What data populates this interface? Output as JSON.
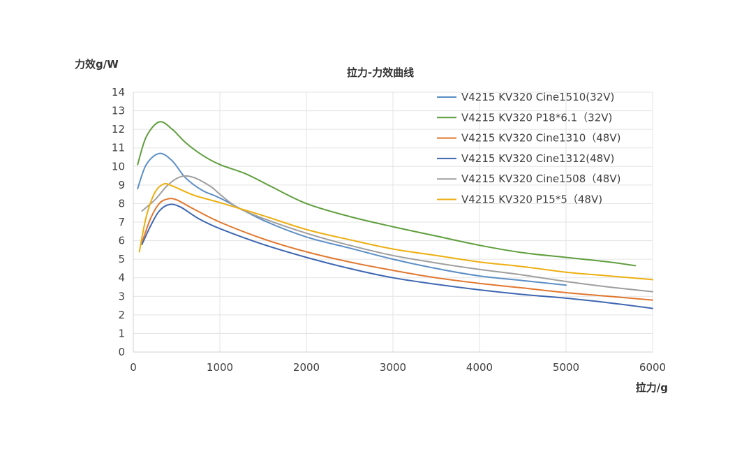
{
  "chart_data": {
    "type": "line",
    "title": "拉力-力效曲线",
    "xlabel": "拉力/g",
    "ylabel": "力效g/W",
    "xlim": [
      0,
      6000
    ],
    "ylim": [
      0,
      14
    ],
    "x_ticks": [
      0,
      1000,
      2000,
      3000,
      4000,
      5000,
      6000
    ],
    "y_ticks": [
      0,
      1,
      2,
      3,
      4,
      5,
      6,
      7,
      8,
      9,
      10,
      11,
      12,
      13,
      14
    ],
    "grid": true,
    "legend_position": "top-right",
    "series": [
      {
        "name": "V4215 KV320 Cine1510(32V)",
        "color": "#5b8ec6",
        "points": [
          [
            50,
            8.8
          ],
          [
            150,
            10.1
          ],
          [
            300,
            10.7
          ],
          [
            450,
            10.3
          ],
          [
            600,
            9.4
          ],
          [
            800,
            8.7
          ],
          [
            1000,
            8.3
          ],
          [
            1500,
            7.1
          ],
          [
            2000,
            6.2
          ],
          [
            2500,
            5.6
          ],
          [
            3000,
            5.0
          ],
          [
            3500,
            4.5
          ],
          [
            4000,
            4.1
          ],
          [
            4500,
            3.85
          ],
          [
            5000,
            3.6
          ]
        ]
      },
      {
        "name": "V4215 KV320 P18*6.1（32V)",
        "color": "#5f9e3d",
        "points": [
          [
            50,
            10.1
          ],
          [
            150,
            11.6
          ],
          [
            300,
            12.4
          ],
          [
            450,
            12.0
          ],
          [
            600,
            11.3
          ],
          [
            800,
            10.6
          ],
          [
            1000,
            10.1
          ],
          [
            1300,
            9.6
          ],
          [
            1600,
            8.9
          ],
          [
            2000,
            8.0
          ],
          [
            2500,
            7.3
          ],
          [
            3000,
            6.75
          ],
          [
            3500,
            6.25
          ],
          [
            4000,
            5.75
          ],
          [
            4500,
            5.35
          ],
          [
            5000,
            5.1
          ],
          [
            5500,
            4.85
          ],
          [
            5800,
            4.65
          ]
        ]
      },
      {
        "name": "V4215 KV320 Cine1310（48V)",
        "color": "#e0772f",
        "points": [
          [
            100,
            5.9
          ],
          [
            200,
            7.2
          ],
          [
            300,
            8.0
          ],
          [
            400,
            8.25
          ],
          [
            500,
            8.2
          ],
          [
            700,
            7.7
          ],
          [
            1000,
            7.0
          ],
          [
            1500,
            6.1
          ],
          [
            2000,
            5.4
          ],
          [
            2500,
            4.85
          ],
          [
            3000,
            4.4
          ],
          [
            3500,
            4.0
          ],
          [
            4000,
            3.7
          ],
          [
            4500,
            3.45
          ],
          [
            5000,
            3.2
          ],
          [
            5500,
            3.0
          ],
          [
            6000,
            2.8
          ]
        ]
      },
      {
        "name": "V4215 KV320 Cine1312(48V)",
        "color": "#3e66b2",
        "points": [
          [
            100,
            5.8
          ],
          [
            200,
            6.8
          ],
          [
            300,
            7.6
          ],
          [
            420,
            7.95
          ],
          [
            550,
            7.8
          ],
          [
            750,
            7.2
          ],
          [
            1000,
            6.65
          ],
          [
            1500,
            5.8
          ],
          [
            2000,
            5.1
          ],
          [
            2500,
            4.5
          ],
          [
            3000,
            4.0
          ],
          [
            3500,
            3.65
          ],
          [
            4000,
            3.35
          ],
          [
            4500,
            3.1
          ],
          [
            5000,
            2.9
          ],
          [
            5500,
            2.65
          ],
          [
            6000,
            2.35
          ]
        ]
      },
      {
        "name": "V4215 KV320 Cine1508（48V)",
        "color": "#9e9e9e",
        "points": [
          [
            100,
            7.6
          ],
          [
            250,
            8.2
          ],
          [
            400,
            9.0
          ],
          [
            550,
            9.45
          ],
          [
            700,
            9.4
          ],
          [
            900,
            8.9
          ],
          [
            1000,
            8.5
          ],
          [
            1200,
            7.8
          ],
          [
            1500,
            7.2
          ],
          [
            2000,
            6.4
          ],
          [
            2500,
            5.75
          ],
          [
            3000,
            5.2
          ],
          [
            3500,
            4.8
          ],
          [
            4000,
            4.45
          ],
          [
            4500,
            4.15
          ],
          [
            5000,
            3.8
          ],
          [
            5500,
            3.5
          ],
          [
            6000,
            3.25
          ]
        ]
      },
      {
        "name": "V4215 KV320 P15*5（48V)",
        "color": "#edaf11",
        "points": [
          [
            70,
            5.4
          ],
          [
            150,
            7.3
          ],
          [
            250,
            8.6
          ],
          [
            350,
            9.05
          ],
          [
            450,
            8.95
          ],
          [
            700,
            8.45
          ],
          [
            1000,
            8.05
          ],
          [
            1500,
            7.35
          ],
          [
            2000,
            6.6
          ],
          [
            2500,
            6.05
          ],
          [
            3000,
            5.55
          ],
          [
            3500,
            5.2
          ],
          [
            4000,
            4.85
          ],
          [
            4500,
            4.6
          ],
          [
            5000,
            4.3
          ],
          [
            5500,
            4.1
          ],
          [
            6000,
            3.9
          ]
        ]
      }
    ]
  }
}
